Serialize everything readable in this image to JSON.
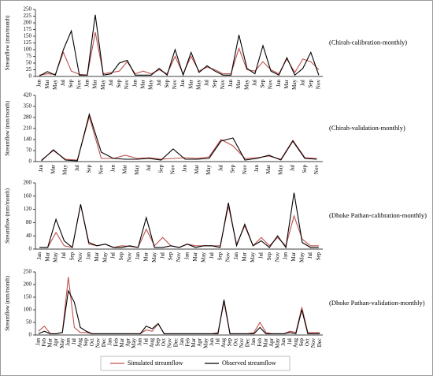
{
  "chart_data": [
    {
      "type": "line",
      "title": "(Chirah-calibration-monthly)",
      "y_label": "Streamflow (mm/month)",
      "categories": [
        "Jan",
        "Mar",
        "May",
        "Jul",
        "Sep",
        "Nov",
        "Jan",
        "Mar",
        "May",
        "Jul",
        "Sep",
        "Nov",
        "Jan",
        "Mar",
        "May",
        "Jul",
        "Sep",
        "Nov",
        "Jan",
        "Mar",
        "May",
        "Jul",
        "Sep",
        "Nov",
        "Jan",
        "Mar",
        "May",
        "Jul",
        "Sep",
        "Nov",
        "Jan",
        "Mar",
        "May",
        "Jul",
        "Sep",
        "Nov"
      ],
      "ylim": [
        0,
        250
      ],
      "yticks": [
        0,
        25,
        50,
        75,
        100,
        125,
        150,
        175,
        200,
        225,
        250
      ],
      "series": [
        {
          "name": "Simulated streamflow",
          "color": "#c0504d",
          "values": [
            5,
            10,
            8,
            90,
            20,
            8,
            5,
            165,
            10,
            15,
            20,
            55,
            10,
            20,
            10,
            25,
            10,
            75,
            10,
            75,
            20,
            35,
            25,
            10,
            10,
            105,
            25,
            20,
            55,
            25,
            10,
            65,
            15,
            65,
            55,
            25
          ]
        },
        {
          "name": "Observed streamflow",
          "color": "#000000",
          "values": [
            2,
            18,
            5,
            100,
            170,
            5,
            5,
            230,
            5,
            10,
            50,
            60,
            5,
            5,
            5,
            30,
            5,
            100,
            5,
            90,
            15,
            40,
            20,
            5,
            5,
            155,
            30,
            10,
            115,
            20,
            5,
            70,
            5,
            30,
            90,
            5
          ]
        }
      ]
    },
    {
      "type": "line",
      "title": "(Chirah-validation-monthly)",
      "y_label": "Streamflow (mm/month)",
      "categories": [
        "Jan",
        "Mar",
        "May",
        "Jul",
        "Sep",
        "Nov",
        "Jan",
        "Mar",
        "May",
        "Jul",
        "Sep",
        "Nov",
        "Jan",
        "Mar",
        "May",
        "Jul",
        "Sep",
        "Nov",
        "Jan",
        "Mar",
        "May",
        "Jul",
        "Sep",
        "Nov"
      ],
      "ylim": [
        0,
        420
      ],
      "yticks": [
        0,
        70,
        140,
        210,
        280,
        350,
        420
      ],
      "series": [
        {
          "color": "#c0504d",
          "values": [
            10,
            70,
            15,
            10,
            285,
            20,
            20,
            40,
            20,
            25,
            15,
            20,
            25,
            20,
            30,
            140,
            100,
            20,
            25,
            35,
            15,
            135,
            25,
            20
          ]
        },
        {
          "color": "#000000",
          "values": [
            5,
            75,
            10,
            5,
            300,
            60,
            20,
            15,
            15,
            20,
            10,
            80,
            15,
            15,
            20,
            130,
            150,
            10,
            20,
            40,
            10,
            130,
            20,
            15
          ]
        }
      ]
    },
    {
      "type": "line",
      "title": "(Dhoke Pathan-calibration-monthly)",
      "y_label": "Streamflow (mm/month)",
      "categories": [
        "Jan",
        "Mar",
        "May",
        "Jul",
        "Sep",
        "Nov",
        "Jan",
        "Mar",
        "May",
        "Jul",
        "Sep",
        "Nov",
        "Jan",
        "Mar",
        "May",
        "Jul",
        "Sep",
        "Nov",
        "Jan",
        "Mar",
        "May",
        "Jul",
        "Sep",
        "Nov",
        "Jan",
        "Mar",
        "May",
        "Jul",
        "Sep",
        "Nov",
        "Jan",
        "Mar",
        "May",
        "Jul",
        "Sep"
      ],
      "ylim": [
        0,
        200
      ],
      "yticks": [
        0,
        40,
        80,
        120,
        160,
        200
      ],
      "series": [
        {
          "color": "#c0504d",
          "values": [
            5,
            5,
            50,
            10,
            5,
            135,
            15,
            10,
            15,
            5,
            10,
            8,
            5,
            60,
            10,
            35,
            10,
            5,
            15,
            10,
            10,
            10,
            10,
            130,
            15,
            70,
            10,
            35,
            10,
            35,
            10,
            100,
            30,
            10,
            10
          ]
        },
        {
          "color": "#000000",
          "values": [
            5,
            5,
            90,
            25,
            5,
            135,
            20,
            10,
            15,
            5,
            5,
            10,
            5,
            95,
            5,
            5,
            10,
            5,
            15,
            5,
            10,
            10,
            5,
            140,
            10,
            75,
            10,
            25,
            5,
            40,
            5,
            170,
            20,
            5,
            5
          ]
        }
      ]
    },
    {
      "type": "line",
      "title": "(Dhoke Pathan-validation-monthly)",
      "y_label": "Streamflow (mm/month)",
      "categories": [
        "Jan",
        "Feb",
        "Mar",
        "Apr",
        "May",
        "Jun",
        "Jul",
        "Aug",
        "Sep",
        "Oct",
        "Nov",
        "Dec",
        "Jan",
        "Feb",
        "Mar",
        "Apr",
        "May",
        "Jun",
        "Jul",
        "Aug",
        "Sep",
        "Oct",
        "Nov",
        "Dec",
        "Jan",
        "Feb",
        "Mar",
        "Apr",
        "May",
        "Jun",
        "Jul",
        "Aug",
        "Sep",
        "Oct",
        "Nov",
        "Dec",
        "Jan",
        "Feb",
        "Mar",
        "Apr",
        "May",
        "Jun",
        "Jul",
        "Aug",
        "Sep",
        "Oct",
        "Nov",
        "Dec"
      ],
      "ylim": [
        0,
        250
      ],
      "yticks": [
        0,
        50,
        100,
        150,
        200,
        250
      ],
      "series": [
        {
          "color": "#c0504d",
          "values": [
            15,
            35,
            5,
            5,
            10,
            230,
            30,
            10,
            10,
            5,
            5,
            5,
            5,
            5,
            5,
            5,
            5,
            5,
            20,
            15,
            45,
            5,
            5,
            5,
            5,
            5,
            5,
            5,
            5,
            5,
            10,
            130,
            5,
            5,
            5,
            5,
            10,
            50,
            10,
            5,
            5,
            5,
            15,
            10,
            110,
            10,
            10,
            10
          ]
        },
        {
          "color": "#000000",
          "values": [
            5,
            15,
            5,
            5,
            10,
            175,
            130,
            30,
            15,
            5,
            5,
            5,
            5,
            5,
            5,
            5,
            5,
            5,
            35,
            25,
            45,
            5,
            5,
            5,
            5,
            5,
            5,
            5,
            5,
            5,
            5,
            140,
            5,
            5,
            5,
            5,
            5,
            30,
            5,
            5,
            5,
            5,
            10,
            5,
            100,
            5,
            5,
            5
          ]
        }
      ]
    }
  ]
}
